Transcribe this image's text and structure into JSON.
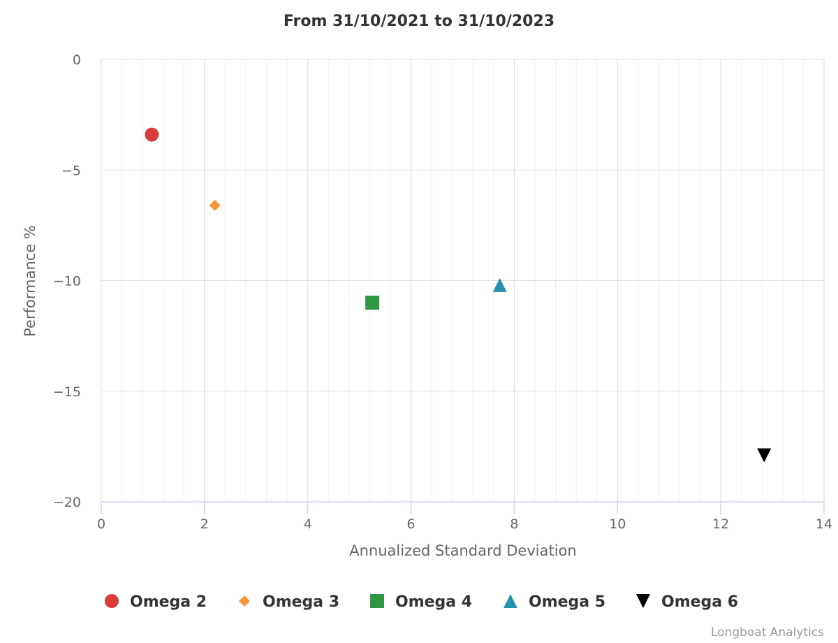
{
  "chart_data": {
    "type": "scatter",
    "title": "From 31/10/2021 to 31/10/2023",
    "xlabel": "Annualized Standard Deviation",
    "ylabel": "Performance %",
    "xlim": [
      0,
      14
    ],
    "ylim": [
      -20,
      0
    ],
    "x_ticks": [
      0,
      2,
      4,
      6,
      8,
      10,
      12,
      14
    ],
    "y_ticks": [
      0,
      -5,
      -10,
      -15,
      -20
    ],
    "x_minor_step": 0.4,
    "grid": true,
    "legend_position": "bottom",
    "series": [
      {
        "name": "Omega 2",
        "marker": "circle",
        "color": "#d93b3b",
        "points": [
          {
            "x": 0.98,
            "y": -3.4
          }
        ]
      },
      {
        "name": "Omega 3",
        "marker": "diamond",
        "color": "#f7953b",
        "points": [
          {
            "x": 2.2,
            "y": -6.6
          }
        ]
      },
      {
        "name": "Omega 4",
        "marker": "square",
        "color": "#2e9640",
        "points": [
          {
            "x": 5.25,
            "y": -11.0
          }
        ]
      },
      {
        "name": "Omega 5",
        "marker": "triangle",
        "color": "#2891ab",
        "points": [
          {
            "x": 7.72,
            "y": -10.2
          }
        ]
      },
      {
        "name": "Omega 6",
        "marker": "triangle-down",
        "color": "#000000",
        "points": [
          {
            "x": 12.84,
            "y": -17.9
          }
        ]
      }
    ],
    "credit": "Longboat Analytics"
  }
}
